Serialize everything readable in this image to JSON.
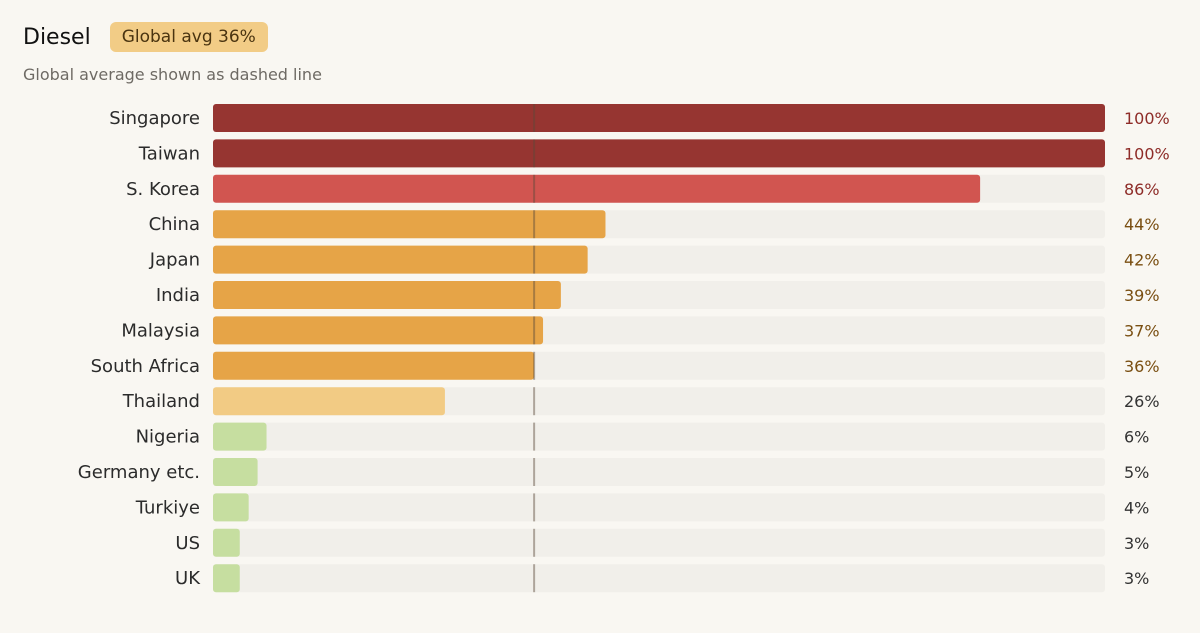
{
  "header": {
    "title": "Diesel",
    "badge": "Global avg 36%",
    "subtitle": "Global average shown as dashed line"
  },
  "chart_data": {
    "type": "bar",
    "orientation": "horizontal",
    "title": "Diesel",
    "subtitle": "Global average shown as dashed line",
    "xlim": [
      0,
      100
    ],
    "reference_line": {
      "label": "Global avg 36%",
      "value": 36
    },
    "categories": [
      "Singapore",
      "Taiwan",
      "S. Korea",
      "China",
      "Japan",
      "India",
      "Malaysia",
      "South Africa",
      "Thailand",
      "Nigeria",
      "Germany etc.",
      "Turkiye",
      "US",
      "UK"
    ],
    "values": [
      100,
      100,
      86,
      44,
      42,
      39,
      37,
      36,
      26,
      6,
      5,
      4,
      3,
      3
    ],
    "value_labels": [
      "100%",
      "100%",
      "86%",
      "44%",
      "42%",
      "39%",
      "37%",
      "36%",
      "26%",
      "6%",
      "5%",
      "4%",
      "3%",
      "3%"
    ],
    "bar_colors": [
      "#963531",
      "#963531",
      "#d15550",
      "#e6a447",
      "#e6a447",
      "#e6a447",
      "#e6a447",
      "#e6a447",
      "#f2cb84",
      "#c6dea0",
      "#c6dea0",
      "#c6dea0",
      "#c6dea0",
      "#c6dea0"
    ],
    "label_colors": [
      "#8e2c28",
      "#8e2c28",
      "#8e2c28",
      "#7a4f12",
      "#7a4f12",
      "#7a4f12",
      "#7a4f12",
      "#7a4f12",
      "#333333",
      "#333333",
      "#333333",
      "#333333",
      "#333333",
      "#333333"
    ],
    "track_color": "#f1efea",
    "reference_line_color": "#5a4a3a"
  }
}
